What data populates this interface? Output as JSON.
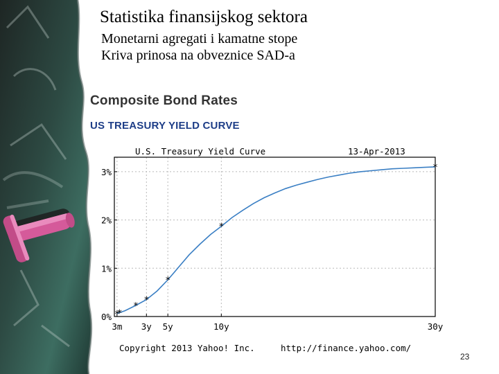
{
  "slide": {
    "title": "Statistika finansijskog sektora",
    "subtitle1": "Monetarni agregati i kamatne stope",
    "subtitle2": "Kriva prinosa na obveznice SAD-a",
    "page_number": "23"
  },
  "card": {
    "heading": "Composite Bond Rates",
    "subheading": "US TREASURY YIELD CURVE"
  },
  "colors": {
    "curve": "#3a7fc4",
    "marker": "#000000",
    "grid": "#b8b8b8",
    "heading": "#333333",
    "subheading": "#1d3d87"
  },
  "chart_data": {
    "type": "line",
    "title": "U.S. Treasury Yield Curve",
    "date": "13-Apr-2013",
    "copyright": "Copyright 2013 Yahoo! Inc.",
    "source_url": "http://finance.yahoo.com/",
    "xlabel": "",
    "ylabel": "",
    "xlim": [
      0,
      30
    ],
    "ylim": [
      0,
      3.3
    ],
    "x_ticks": [
      {
        "value": 0.25,
        "label": "3m"
      },
      {
        "value": 3,
        "label": "3y"
      },
      {
        "value": 5,
        "label": "5y"
      },
      {
        "value": 10,
        "label": "10y"
      },
      {
        "value": 30,
        "label": "30y"
      }
    ],
    "y_ticks": [
      {
        "value": 0,
        "label": "0%"
      },
      {
        "value": 1,
        "label": "1%"
      },
      {
        "value": 2,
        "label": "2%"
      },
      {
        "value": 3,
        "label": "3%"
      }
    ],
    "x_grid": [
      0.25,
      3,
      5,
      10,
      30
    ],
    "y_grid": [
      0,
      1,
      2,
      3
    ],
    "points": [
      {
        "x": 0.25,
        "y": 0.06
      },
      {
        "x": 0.5,
        "y": 0.08
      },
      {
        "x": 2,
        "y": 0.23
      },
      {
        "x": 3,
        "y": 0.35
      },
      {
        "x": 5,
        "y": 0.76
      },
      {
        "x": 10,
        "y": 1.87
      },
      {
        "x": 30,
        "y": 3.1
      }
    ],
    "curve": [
      {
        "x": 0.25,
        "y": 0.06
      },
      {
        "x": 0.5,
        "y": 0.08
      },
      {
        "x": 1,
        "y": 0.12
      },
      {
        "x": 2,
        "y": 0.23
      },
      {
        "x": 3,
        "y": 0.35
      },
      {
        "x": 4,
        "y": 0.53
      },
      {
        "x": 5,
        "y": 0.76
      },
      {
        "x": 6,
        "y": 1.02
      },
      {
        "x": 7,
        "y": 1.28
      },
      {
        "x": 8,
        "y": 1.5
      },
      {
        "x": 9,
        "y": 1.7
      },
      {
        "x": 10,
        "y": 1.87
      },
      {
        "x": 11,
        "y": 2.05
      },
      {
        "x": 12,
        "y": 2.2
      },
      {
        "x": 13,
        "y": 2.34
      },
      {
        "x": 14,
        "y": 2.46
      },
      {
        "x": 15,
        "y": 2.56
      },
      {
        "x": 16,
        "y": 2.65
      },
      {
        "x": 17,
        "y": 2.72
      },
      {
        "x": 18,
        "y": 2.78
      },
      {
        "x": 19,
        "y": 2.84
      },
      {
        "x": 20,
        "y": 2.89
      },
      {
        "x": 21,
        "y": 2.93
      },
      {
        "x": 22,
        "y": 2.97
      },
      {
        "x": 23,
        "y": 3.0
      },
      {
        "x": 24,
        "y": 3.02
      },
      {
        "x": 25,
        "y": 3.04
      },
      {
        "x": 26,
        "y": 3.06
      },
      {
        "x": 27,
        "y": 3.07
      },
      {
        "x": 28,
        "y": 3.08
      },
      {
        "x": 29,
        "y": 3.09
      },
      {
        "x": 30,
        "y": 3.1
      }
    ]
  }
}
